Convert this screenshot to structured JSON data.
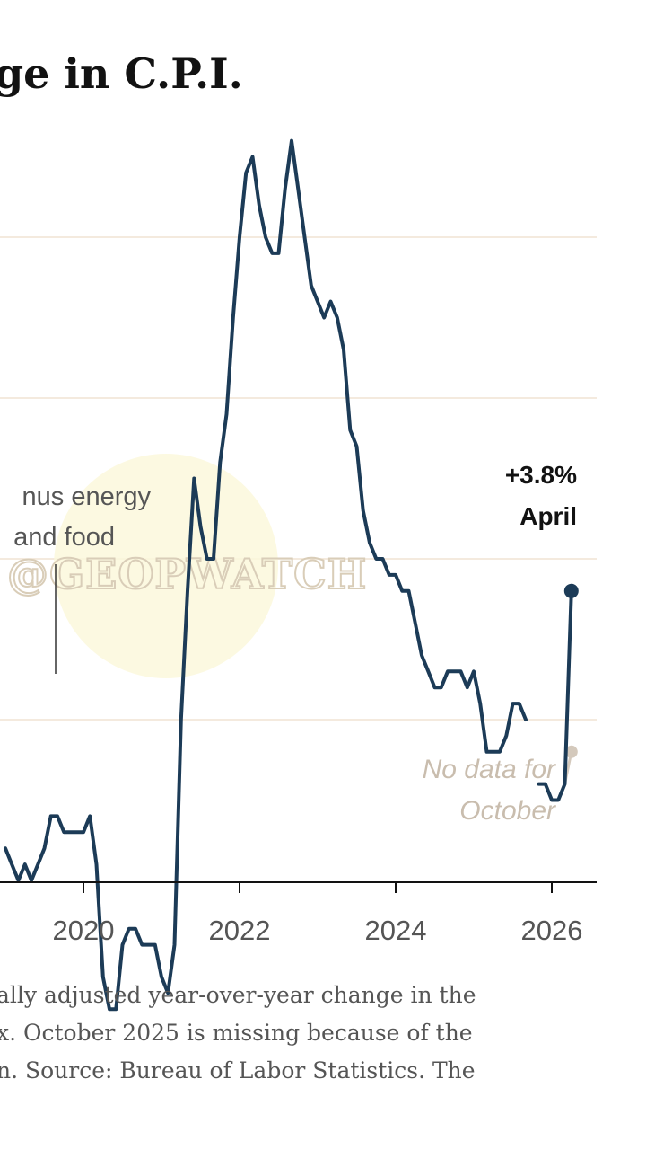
{
  "title": "ge in C.P.I.",
  "chart_data": {
    "type": "line",
    "x_ticks": [
      "2020",
      "2022",
      "2024",
      "2026"
    ],
    "grid": true,
    "series": [
      {
        "name": "",
        "color": "#1c3b57",
        "points": [
          [
            "2019-01",
            2.2
          ],
          [
            "2019-02",
            2.1
          ],
          [
            "2019-03",
            2.0
          ],
          [
            "2019-04",
            2.1
          ],
          [
            "2019-05",
            2.0
          ],
          [
            "2019-06",
            2.1
          ],
          [
            "2019-07",
            2.2
          ],
          [
            "2019-08",
            2.4
          ],
          [
            "2019-09",
            2.4
          ],
          [
            "2019-10",
            2.3
          ],
          [
            "2019-11",
            2.3
          ],
          [
            "2019-12",
            2.3
          ],
          [
            "2020-01",
            2.3
          ],
          [
            "2020-02",
            2.4
          ],
          [
            "2020-03",
            2.1
          ],
          [
            "2020-04",
            1.4
          ],
          [
            "2020-05",
            1.2
          ],
          [
            "2020-06",
            1.2
          ],
          [
            "2020-07",
            1.6
          ],
          [
            "2020-08",
            1.7
          ],
          [
            "2020-09",
            1.7
          ],
          [
            "2020-10",
            1.6
          ],
          [
            "2020-11",
            1.6
          ],
          [
            "2020-12",
            1.6
          ],
          [
            "2021-01",
            1.4
          ],
          [
            "2021-02",
            1.3
          ],
          [
            "2021-03",
            1.6
          ],
          [
            "2021-04",
            3.0
          ],
          [
            "2021-05",
            3.8
          ],
          [
            "2021-06",
            4.5
          ],
          [
            "2021-07",
            4.2
          ],
          [
            "2021-08",
            4.0
          ],
          [
            "2021-09",
            4.0
          ],
          [
            "2021-10",
            4.6
          ],
          [
            "2021-11",
            4.9
          ],
          [
            "2021-12",
            5.5
          ],
          [
            "2022-01",
            6.0
          ],
          [
            "2022-02",
            6.4
          ],
          [
            "2022-03",
            6.5
          ],
          [
            "2022-04",
            6.2
          ],
          [
            "2022-05",
            6.0
          ],
          [
            "2022-06",
            5.9
          ],
          [
            "2022-07",
            5.9
          ],
          [
            "2022-08",
            6.3
          ],
          [
            "2022-09",
            6.6
          ],
          [
            "2022-10",
            6.3
          ],
          [
            "2022-11",
            6.0
          ],
          [
            "2022-12",
            5.7
          ],
          [
            "2023-01",
            5.6
          ],
          [
            "2023-02",
            5.5
          ],
          [
            "2023-03",
            5.6
          ],
          [
            "2023-04",
            5.5
          ],
          [
            "2023-05",
            5.3
          ],
          [
            "2023-06",
            4.8
          ],
          [
            "2023-07",
            4.7
          ],
          [
            "2023-08",
            4.3
          ],
          [
            "2023-09",
            4.1
          ],
          [
            "2023-10",
            4.0
          ],
          [
            "2023-11",
            4.0
          ],
          [
            "2023-12",
            3.9
          ],
          [
            "2024-01",
            3.9
          ],
          [
            "2024-02",
            3.8
          ],
          [
            "2024-03",
            3.8
          ],
          [
            "2024-04",
            3.6
          ],
          [
            "2024-05",
            3.4
          ],
          [
            "2024-06",
            3.3
          ],
          [
            "2024-07",
            3.2
          ],
          [
            "2024-08",
            3.2
          ],
          [
            "2024-09",
            3.3
          ],
          [
            "2024-10",
            3.3
          ],
          [
            "2024-11",
            3.3
          ],
          [
            "2024-12",
            3.2
          ],
          [
            "2025-01",
            3.3
          ],
          [
            "2025-02",
            3.1
          ],
          [
            "2025-03",
            2.8
          ],
          [
            "2025-04",
            2.8
          ],
          [
            "2025-05",
            2.8
          ],
          [
            "2025-06",
            2.9
          ],
          [
            "2025-07",
            3.1
          ],
          [
            "2025-08",
            3.1
          ],
          [
            "2025-09",
            3.0
          ],
          null,
          [
            "2025-11",
            2.6
          ],
          [
            "2025-12",
            2.6
          ],
          [
            "2026-01",
            2.5
          ],
          [
            "2026-02",
            2.5
          ],
          [
            "2026-03",
            2.6
          ],
          [
            "2026-04",
            3.8
          ]
        ]
      },
      {
        "name": "minus energy and food",
        "color": "#d4c9bc",
        "points": [
          [
            "2019-01",
            2.2
          ],
          [
            "2019-02",
            2.1
          ],
          [
            "2019-03",
            2.0
          ],
          [
            "2019-04",
            2.1
          ],
          [
            "2019-05",
            2.0
          ],
          [
            "2019-06",
            2.1
          ],
          [
            "2019-07",
            2.2
          ],
          [
            "2019-08",
            2.4
          ],
          [
            "2019-09",
            2.4
          ],
          [
            "2019-10",
            2.3
          ],
          [
            "2019-11",
            2.3
          ],
          [
            "2019-12",
            2.3
          ],
          [
            "2020-01",
            2.3
          ],
          [
            "2020-02",
            2.4
          ],
          [
            "2020-03",
            2.1
          ],
          [
            "2020-04",
            1.4
          ],
          [
            "2020-05",
            1.2
          ],
          [
            "2020-06",
            1.2
          ],
          [
            "2020-07",
            1.6
          ],
          [
            "2020-08",
            1.7
          ],
          [
            "2020-09",
            1.7
          ],
          [
            "2020-10",
            1.6
          ],
          [
            "2020-11",
            1.6
          ],
          [
            "2020-12",
            1.6
          ],
          [
            "2021-01",
            1.4
          ],
          [
            "2021-02",
            1.3
          ],
          [
            "2021-03",
            1.6
          ],
          [
            "2021-04",
            3.0
          ],
          [
            "2021-05",
            3.8
          ],
          [
            "2021-06",
            4.5
          ],
          [
            "2021-07",
            4.2
          ],
          [
            "2021-08",
            4.0
          ],
          [
            "2021-09",
            4.0
          ],
          [
            "2021-10",
            4.6
          ],
          [
            "2021-11",
            4.9
          ],
          [
            "2021-12",
            5.5
          ],
          [
            "2022-01",
            6.0
          ],
          [
            "2022-02",
            6.4
          ],
          [
            "2022-03",
            6.5
          ],
          [
            "2022-04",
            6.2
          ],
          [
            "2022-05",
            6.0
          ],
          [
            "2022-06",
            5.9
          ],
          [
            "2022-07",
            5.9
          ],
          [
            "2022-08",
            6.3
          ],
          [
            "2022-09",
            6.6
          ],
          [
            "2022-10",
            6.3
          ],
          [
            "2022-11",
            6.0
          ],
          [
            "2022-12",
            5.7
          ],
          [
            "2023-01",
            5.6
          ],
          [
            "2023-02",
            5.5
          ],
          [
            "2023-03",
            5.6
          ],
          [
            "2023-04",
            5.5
          ],
          [
            "2023-05",
            5.3
          ],
          [
            "2023-06",
            4.8
          ],
          [
            "2023-07",
            4.7
          ],
          [
            "2023-08",
            4.3
          ],
          [
            "2023-09",
            4.1
          ],
          [
            "2023-10",
            4.0
          ],
          [
            "2023-11",
            4.0
          ],
          [
            "2023-12",
            3.9
          ],
          [
            "2024-01",
            3.9
          ],
          [
            "2024-02",
            3.8
          ],
          [
            "2024-03",
            3.8
          ],
          [
            "2024-04",
            3.6
          ],
          [
            "2024-05",
            3.4
          ],
          [
            "2024-06",
            3.3
          ],
          [
            "2024-07",
            3.2
          ],
          [
            "2024-08",
            3.2
          ],
          [
            "2024-09",
            3.3
          ],
          [
            "2024-10",
            3.3
          ],
          [
            "2024-11",
            3.3
          ],
          [
            "2024-12",
            3.2
          ],
          [
            "2025-01",
            3.3
          ],
          [
            "2025-02",
            3.1
          ],
          [
            "2025-03",
            2.8
          ],
          [
            "2025-04",
            2.8
          ],
          [
            "2025-05",
            2.8
          ],
          [
            "2025-06",
            2.9
          ],
          [
            "2025-07",
            3.1
          ],
          [
            "2025-08",
            3.1
          ],
          [
            "2025-09",
            3.0
          ],
          null,
          [
            "2025-11",
            2.6
          ],
          [
            "2025-12",
            2.6
          ],
          [
            "2026-01",
            2.5
          ],
          [
            "2026-02",
            2.5
          ],
          [
            "2026-03",
            2.6
          ],
          [
            "2026-04",
            2.8
          ]
        ]
      }
    ],
    "annotations": {
      "latest_value": "+3.8%",
      "latest_label": "April",
      "series_label_line1": "nus energy",
      "series_label_line2": "and food",
      "missing_line1": "No data for",
      "missing_line2": "October"
    }
  },
  "watermark": "@GEOPWATCH",
  "footnote": {
    "line1": "ally adjusted year-over-year change in the",
    "line2": "x. October 2025 is missing because of the",
    "line3": "n.  Source: Bureau of Labor Statistics.  The"
  }
}
